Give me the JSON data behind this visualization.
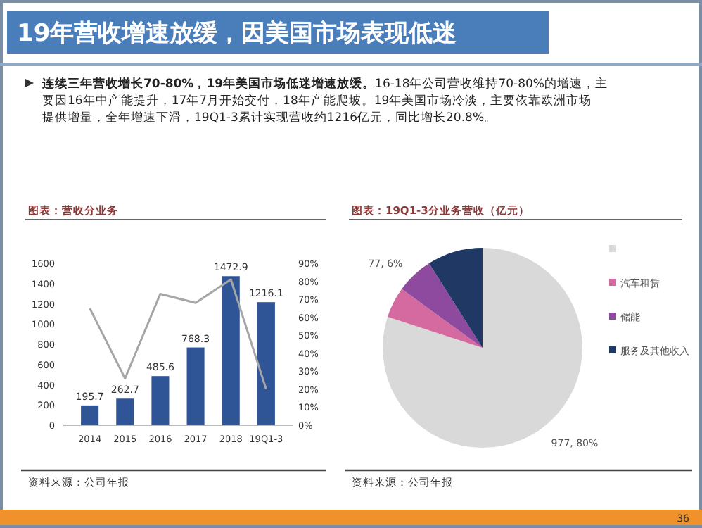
{
  "chart_data": [
    {
      "type": "other",
      "title": "19年营收增速放缓，因美国市场表现低迷",
      "annotations": [
        "连续三年营收增长70-80%，19年美国市场低迷增速放缓。",
        "16-18年公司营收维持70-80%的增速，主要因16年中产能提升，17年7月开始交付，18年产能爬坡。19年美国市场冷淡，主要依靠欧洲市场提供增量，全年增速下滑，19Q1-3累计实现营收约1216亿元，同比增长20.8%。",
        "36"
      ]
    },
    {
      "type": "bar",
      "title": "图表：营收分业务",
      "categories": [
        "2014",
        "2015",
        "2016",
        "2017",
        "2018",
        "19Q1-3"
      ],
      "series": [
        {
          "type": "bar",
          "color": "#2f5597",
          "values": [
            195.7,
            262.7,
            485.6,
            768.3,
            1472.9,
            1216.1
          ],
          "value_labels": [
            "195.7",
            "262.7",
            "485.6",
            "768.3",
            "1472.9",
            "1216.1"
          ]
        },
        {
          "type": "line",
          "axis": "y2",
          "color": "#a6a6a6",
          "values": [
            65,
            26,
            73,
            68,
            81,
            20
          ]
        }
      ],
      "ylim": [
        0,
        1600
      ],
      "yticks": [
        0,
        200,
        400,
        600,
        800,
        1000,
        1200,
        1400,
        1600
      ],
      "y2lim": [
        0,
        90
      ],
      "y2ticks": [
        {
          "value": 0,
          "label": "0%"
        },
        {
          "value": 10,
          "label": "10%"
        },
        {
          "value": 20,
          "label": "20%"
        },
        {
          "value": 30,
          "label": "30%"
        },
        {
          "value": 40,
          "label": "40%"
        },
        {
          "value": 50,
          "label": "50%"
        },
        {
          "value": 60,
          "label": "60%"
        },
        {
          "value": 70,
          "label": "70%"
        },
        {
          "value": 80,
          "label": "80%"
        },
        {
          "value": 90,
          "label": "90%"
        }
      ],
      "grid": false,
      "marker": "none",
      "line_style": "solid",
      "annotations": [
        "资料来源：公司年报"
      ]
    },
    {
      "type": "pie",
      "title": "图表：19Q1-3分业务营收（亿元）",
      "categories": [
        null,
        "汽车租赁",
        "储能",
        "服务及其他收入"
      ],
      "values": [
        80,
        5,
        6,
        9
      ],
      "colors": [
        "#d9d9d9",
        "#d46a9f",
        "#8e4a9e",
        "#1f3864"
      ],
      "value_labels": [
        "977, 80%",
        null,
        "77, 6%",
        null
      ],
      "legend": "right",
      "annotations": [
        "资料来源：公司年报"
      ]
    }
  ]
}
